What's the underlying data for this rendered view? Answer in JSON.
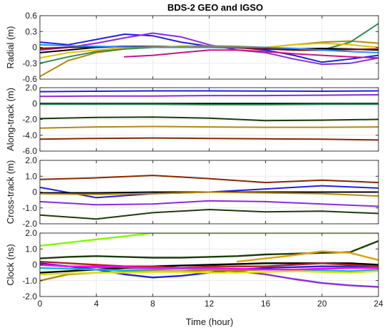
{
  "chart_data": {
    "type": "line",
    "title": "BDS-2 GEO and IGSO",
    "xlabel": "Time (hour)",
    "xlim": [
      0,
      24
    ],
    "xticks": [
      "0",
      "4",
      "8",
      "12",
      "16",
      "20",
      "24"
    ],
    "xtick_values": [
      0,
      4,
      8,
      12,
      16,
      20,
      24
    ],
    "grid": true,
    "panels": [
      {
        "ylabel": "Radial (m)",
        "ylim": [
          -0.6,
          0.6
        ],
        "yticks": [
          "0.6",
          "0.3",
          "0",
          "-0.3",
          "-0.6"
        ],
        "ytick_values": [
          0.6,
          0.3,
          0,
          -0.3,
          -0.6
        ],
        "series": [
          {
            "color": "#2020e0",
            "x": [
              0,
              2,
              4,
              6,
              8,
              10,
              12,
              14,
              16,
              18,
              20,
              22,
              24
            ],
            "y": [
              0.1,
              0.05,
              0.15,
              0.25,
              0.22,
              0.1,
              0.02,
              0.0,
              -0.05,
              -0.15,
              -0.28,
              -0.22,
              -0.15
            ]
          },
          {
            "color": "#8a2be2",
            "x": [
              0,
              2,
              4,
              6,
              8,
              10,
              12,
              14,
              16,
              18,
              20,
              22,
              24
            ],
            "y": [
              -0.05,
              0.0,
              0.08,
              0.18,
              0.27,
              0.2,
              0.05,
              -0.05,
              -0.1,
              -0.22,
              -0.32,
              -0.3,
              -0.2
            ]
          },
          {
            "color": "#b8860b",
            "x": [
              0,
              2,
              4,
              6,
              8,
              10,
              12,
              14,
              16,
              18,
              20,
              22,
              24
            ],
            "y": [
              -0.55,
              -0.25,
              -0.1,
              -0.03,
              0.0,
              0.02,
              0.03,
              0.02,
              0.0,
              0.05,
              0.1,
              0.12,
              0.08
            ]
          },
          {
            "color": "#2e8b57",
            "x": [
              0,
              2,
              4,
              6,
              8,
              10,
              12,
              14,
              16,
              18,
              20,
              22,
              24
            ],
            "y": [
              -0.3,
              -0.18,
              -0.08,
              -0.03,
              0.0,
              0.0,
              0.0,
              0.0,
              -0.02,
              -0.05,
              -0.05,
              0.1,
              0.45
            ]
          },
          {
            "color": "#000000",
            "x": [
              0,
              2,
              4,
              6,
              8,
              10,
              12,
              14,
              16,
              18,
              20,
              22,
              24
            ],
            "y": [
              -0.1,
              -0.05,
              0.0,
              0.02,
              0.02,
              0.01,
              0.0,
              0.0,
              -0.02,
              -0.03,
              -0.02,
              -0.03,
              -0.05
            ]
          },
          {
            "color": "#8b0000",
            "x": [
              0,
              2,
              4,
              6,
              8,
              10,
              12,
              14,
              16,
              18,
              20,
              22,
              24
            ],
            "y": [
              -0.02,
              0.0,
              0.01,
              0.02,
              0.02,
              0.01,
              0.0,
              -0.01,
              -0.03,
              -0.05,
              -0.05,
              -0.04,
              -0.03
            ]
          },
          {
            "color": "#c71585",
            "x": [
              6,
              8,
              10,
              12,
              14,
              16,
              18,
              20,
              22,
              24
            ],
            "y": [
              -0.18,
              -0.15,
              -0.1,
              -0.05,
              -0.05,
              -0.08,
              -0.12,
              -0.15,
              -0.18,
              -0.2
            ]
          },
          {
            "color": "#e0c000",
            "x": [
              0,
              2,
              4,
              6,
              8,
              10,
              12,
              14,
              16,
              18,
              20,
              22,
              24
            ],
            "y": [
              -0.2,
              -0.1,
              -0.05,
              0.0,
              0.01,
              0.01,
              0.0,
              0.0,
              0.0,
              0.05,
              0.08,
              0.05,
              0.0
            ]
          },
          {
            "color": "#1e90ff",
            "x": [
              0,
              2,
              4,
              6,
              8,
              10,
              12,
              14,
              16,
              18,
              20,
              22,
              24
            ],
            "y": [
              0.05,
              0.03,
              0.02,
              0.01,
              0.0,
              0.0,
              0.0,
              0.0,
              0.0,
              -0.02,
              -0.05,
              -0.08,
              -0.1
            ]
          }
        ]
      },
      {
        "ylabel": "Along-track (m)",
        "ylim": [
          -6.0,
          2.0
        ],
        "yticks": [
          "2.0",
          "0",
          "-2.0",
          "-4.0",
          "-6.0"
        ],
        "ytick_values": [
          2.0,
          0,
          -2.0,
          -4.0,
          -6.0
        ],
        "series": [
          {
            "color": "#2020e0",
            "x": [
              0,
              4,
              8,
              12,
              16,
              20,
              24
            ],
            "y": [
              1.5,
              1.55,
              1.6,
              1.6,
              1.58,
              1.55,
              1.6
            ]
          },
          {
            "color": "#8a2be2",
            "x": [
              0,
              4,
              8,
              12,
              16,
              20,
              24
            ],
            "y": [
              0.9,
              0.95,
              0.95,
              1.0,
              1.0,
              1.05,
              1.1
            ]
          },
          {
            "color": "#000000",
            "x": [
              0,
              4,
              8,
              12,
              16,
              20,
              24
            ],
            "y": [
              0.0,
              0.0,
              0.0,
              0.0,
              0.0,
              0.0,
              0.0
            ]
          },
          {
            "color": "#2e8b57",
            "x": [
              0,
              4,
              8,
              12,
              16,
              20,
              24
            ],
            "y": [
              -0.1,
              -0.1,
              -0.1,
              -0.15,
              -0.15,
              -0.1,
              -0.1
            ]
          },
          {
            "color": "#1a3d0a",
            "x": [
              0,
              4,
              8,
              12,
              16,
              20,
              24
            ],
            "y": [
              -1.9,
              -1.75,
              -1.7,
              -1.85,
              -2.15,
              -2.1,
              -2.0
            ]
          },
          {
            "color": "#b8860b",
            "x": [
              0,
              4,
              8,
              12,
              16,
              20,
              24
            ],
            "y": [
              -3.1,
              -2.95,
              -2.9,
              -2.95,
              -3.0,
              -3.0,
              -2.95
            ]
          },
          {
            "color": "#8b2500",
            "x": [
              0,
              4,
              8,
              12,
              16,
              20,
              24
            ],
            "y": [
              -4.5,
              -4.4,
              -4.35,
              -4.4,
              -4.45,
              -4.5,
              -4.6
            ]
          }
        ]
      },
      {
        "ylabel": "Cross-track (m)",
        "ylim": [
          -2.0,
          2.0
        ],
        "yticks": [
          "2.0",
          "1.0",
          "0",
          "-1.0",
          "-2.0"
        ],
        "ytick_values": [
          2.0,
          1.0,
          0,
          -1.0,
          -2.0
        ],
        "series": [
          {
            "color": "#8b2500",
            "x": [
              0,
              4,
              8,
              12,
              16,
              20,
              24
            ],
            "y": [
              0.8,
              0.9,
              1.05,
              0.85,
              0.6,
              0.75,
              0.6
            ]
          },
          {
            "color": "#2020e0",
            "x": [
              0,
              4,
              8,
              12,
              16,
              20,
              24
            ],
            "y": [
              0.3,
              -0.35,
              -0.1,
              0.0,
              0.2,
              0.4,
              0.25
            ]
          },
          {
            "color": "#000000",
            "x": [
              0,
              4,
              8,
              12,
              16,
              20,
              24
            ],
            "y": [
              -0.05,
              -0.05,
              0.0,
              0.0,
              0.0,
              0.0,
              0.0
            ]
          },
          {
            "color": "#b8860b",
            "x": [
              0,
              4,
              8,
              12,
              16,
              20,
              24
            ],
            "y": [
              -0.1,
              -0.15,
              -0.1,
              0.0,
              -0.05,
              -0.1,
              -0.25
            ]
          },
          {
            "color": "#8a2be2",
            "x": [
              0,
              4,
              8,
              12,
              16,
              20,
              24
            ],
            "y": [
              -0.6,
              -0.8,
              -0.75,
              -0.55,
              -0.6,
              -0.75,
              -0.9
            ]
          },
          {
            "color": "#1a3d0a",
            "x": [
              0,
              4,
              8,
              12,
              16,
              20,
              24
            ],
            "y": [
              -1.45,
              -1.7,
              -1.3,
              -1.1,
              -1.25,
              -1.2,
              -1.35
            ]
          }
        ]
      },
      {
        "ylabel": "Clock (ns)",
        "ylim": [
          -2.0,
          2.0
        ],
        "yticks": [
          "2.0",
          "1.0",
          "0",
          "-1.0",
          "-2.0"
        ],
        "ytick_values": [
          2.0,
          1.0,
          0,
          -1.0,
          -2.0
        ],
        "series": [
          {
            "color": "#7cfc00",
            "x": [
              0,
              2,
              4,
              6,
              8,
              10,
              12,
              14,
              16,
              18,
              20,
              22,
              24
            ],
            "y": [
              1.2,
              1.4,
              1.6,
              1.8,
              2.0,
              2.0,
              2.0,
              2.0,
              2.0,
              2.0,
              2.0,
              2.0,
              2.0
            ]
          },
          {
            "color": "#1a3d0a",
            "x": [
              0,
              2,
              4,
              6,
              8,
              10,
              12,
              14,
              16,
              18,
              20,
              22,
              24
            ],
            "y": [
              0.4,
              0.5,
              0.55,
              0.5,
              0.45,
              0.45,
              0.5,
              0.55,
              0.65,
              0.7,
              0.75,
              0.8,
              1.5
            ]
          },
          {
            "color": "#e0a000",
            "x": [
              14,
              16,
              18,
              20,
              22,
              24
            ],
            "y": [
              0.2,
              0.4,
              0.6,
              0.85,
              0.75,
              0.3
            ]
          },
          {
            "color": "#2020e0",
            "x": [
              0,
              2,
              4,
              6,
              8,
              10,
              12,
              14,
              16,
              18,
              20,
              22,
              24
            ],
            "y": [
              0.1,
              -0.1,
              -0.3,
              -0.6,
              -0.8,
              -0.7,
              -0.5,
              -0.3,
              -0.2,
              -0.15,
              -0.1,
              -0.1,
              -0.2
            ]
          },
          {
            "color": "#8a2be2",
            "x": [
              0,
              2,
              4,
              6,
              8,
              10,
              12,
              14,
              16,
              18,
              20,
              22,
              24
            ],
            "y": [
              0.0,
              -0.1,
              -0.15,
              -0.2,
              -0.2,
              -0.25,
              -0.3,
              -0.4,
              -0.6,
              -0.9,
              -1.15,
              -1.3,
              -1.4
            ]
          },
          {
            "color": "#000000",
            "x": [
              0,
              2,
              4,
              6,
              8,
              10,
              12,
              14,
              16,
              18,
              20,
              22,
              24
            ],
            "y": [
              -0.5,
              -0.4,
              -0.3,
              -0.2,
              -0.1,
              -0.05,
              0.0,
              0.05,
              0.1,
              0.1,
              0.1,
              0.1,
              0.0
            ]
          },
          {
            "color": "#b22222",
            "x": [
              0,
              2,
              4,
              6,
              8,
              10,
              12,
              14,
              16,
              18,
              20,
              22,
              24
            ],
            "y": [
              0.2,
              0.1,
              0.0,
              -0.1,
              -0.1,
              -0.2,
              -0.1,
              -0.1,
              -0.1,
              0.0,
              0.1,
              0.0,
              -0.1
            ]
          },
          {
            "color": "#00bcd4",
            "x": [
              0,
              2,
              4,
              6,
              8,
              10,
              12,
              14,
              16,
              18,
              20,
              22,
              24
            ],
            "y": [
              -0.2,
              -0.25,
              -0.3,
              -0.35,
              -0.3,
              -0.25,
              -0.3,
              -0.35,
              -0.3,
              -0.3,
              -0.35,
              -0.4,
              -0.3
            ]
          },
          {
            "color": "#b8860b",
            "x": [
              0,
              1,
              2,
              4,
              6,
              8,
              10,
              12,
              14,
              16,
              18,
              20,
              22,
              24
            ],
            "y": [
              -1.0,
              -0.8,
              -0.6,
              -0.5,
              -0.45,
              -0.4,
              -0.4,
              -0.35,
              -0.35,
              -0.3,
              -0.3,
              -0.25,
              -0.2,
              -0.2
            ]
          },
          {
            "color": "#e0e000",
            "x": [
              0,
              2,
              4,
              6,
              8,
              10,
              12,
              14,
              16,
              18,
              20,
              22,
              24
            ],
            "y": [
              -0.6,
              -0.55,
              -0.5,
              -0.5,
              -0.45,
              -0.45,
              -0.5,
              -0.5,
              -0.45,
              -0.4,
              -0.45,
              -0.5,
              -0.4
            ]
          },
          {
            "color": "#ff00ff",
            "x": [
              0,
              2,
              4,
              6,
              8,
              10,
              12,
              14,
              16,
              18,
              20,
              22,
              24
            ],
            "y": [
              0.0,
              -0.1,
              -0.1,
              -0.15,
              -0.2,
              -0.2,
              -0.2,
              -0.25,
              -0.3,
              -0.3,
              -0.25,
              -0.2,
              -0.2
            ]
          }
        ]
      }
    ]
  }
}
